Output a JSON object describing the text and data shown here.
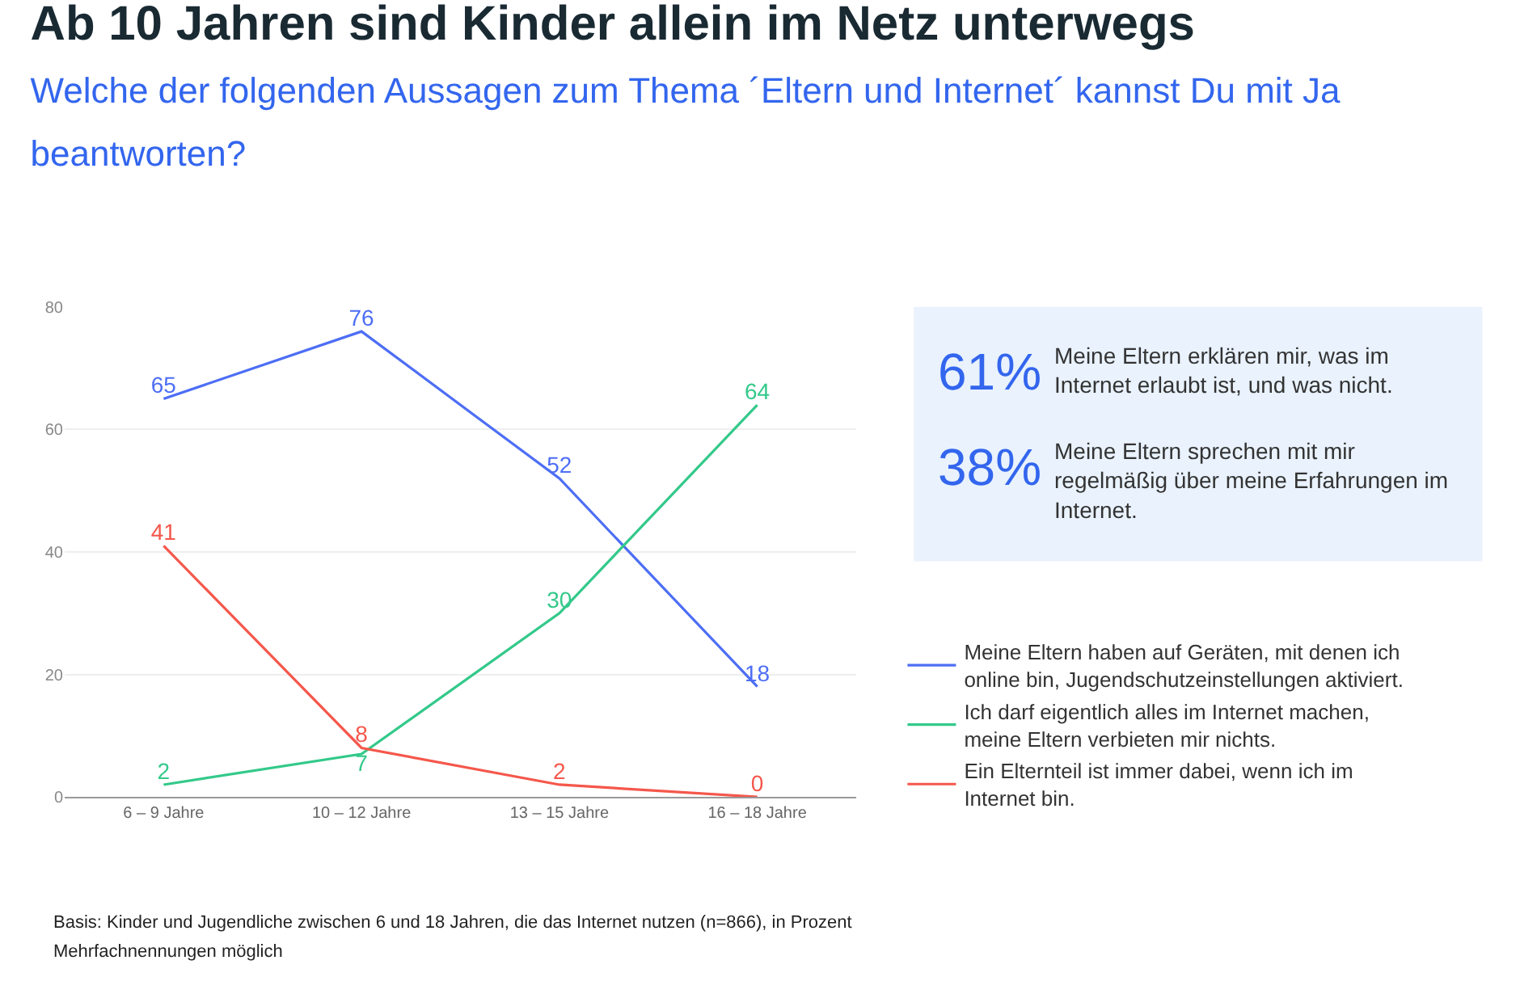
{
  "chart_data": {
    "type": "line",
    "title": "Ab 10 Jahren sind Kinder allein im Netz unterwegs",
    "subtitle": "Welche der folgenden Aussagen zum Thema ´Eltern und Internet´ kannst Du mit Ja beantworten?",
    "categories": [
      "6 – 9 Jahre",
      "10 – 12 Jahre",
      "13 – 15 Jahre",
      "16 – 18 Jahre"
    ],
    "series": [
      {
        "name": "Meine Eltern haben auf Geräten, mit denen ich online bin, Jugendschutzeinstellungen aktiviert.",
        "color": "#4d6ef5",
        "values": [
          65,
          76,
          52,
          18
        ]
      },
      {
        "name": "Ich darf eigentlich alles im Internet machen, meine Eltern verbieten mir nichts.",
        "color": "#33c98a",
        "values": [
          2,
          7,
          30,
          64
        ]
      },
      {
        "name": "Ein Elternteil ist immer dabei, wenn ich im Internet bin.",
        "color": "#f5574b",
        "values": [
          41,
          8,
          2,
          0
        ]
      }
    ],
    "ylim": [
      0,
      80
    ],
    "yticks": [
      0,
      20,
      40,
      60,
      80
    ],
    "grid": "y",
    "legend": "right",
    "marker": "none",
    "line_style": "solid",
    "data_labels": true,
    "annotations": [
      "61% Meine Eltern erklären mir, was im Internet erlaubt ist, und was nicht.",
      "38% Meine Eltern sprechen mit mir regelmäßig über meine Erfahrungen im Internet.",
      "Basis: Kinder und Jugendliche zwischen 6 und 18 Jahren, die das Internet nutzen (n=866), in Prozent",
      "Mehrfachnennungen möglich"
    ]
  }
}
